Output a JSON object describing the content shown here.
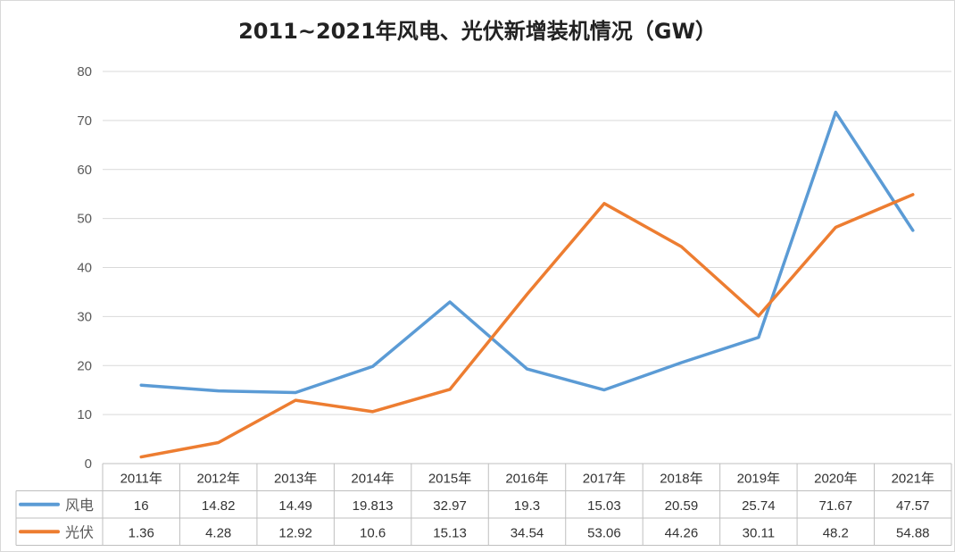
{
  "chart_data": {
    "type": "line",
    "title": "2011~2021年风电、光伏新增装机情况（GW）",
    "categories": [
      "2011年",
      "2012年",
      "2013年",
      "2014年",
      "2015年",
      "2016年",
      "2017年",
      "2018年",
      "2019年",
      "2020年",
      "2021年"
    ],
    "series": [
      {
        "name": "风电",
        "color": "#5B9BD5",
        "values": [
          16,
          14.82,
          14.49,
          19.813,
          32.97,
          19.3,
          15.03,
          20.59,
          25.74,
          71.67,
          47.57
        ]
      },
      {
        "name": "光伏",
        "color": "#ED7D31",
        "values": [
          1.36,
          4.28,
          12.92,
          10.6,
          15.13,
          34.54,
          53.06,
          44.26,
          30.11,
          48.2,
          54.88
        ]
      }
    ],
    "ylim": [
      0,
      80
    ],
    "yticks": [
      0,
      10,
      20,
      30,
      40,
      50,
      60,
      70,
      80
    ],
    "grid": true,
    "legend": "data-table"
  }
}
